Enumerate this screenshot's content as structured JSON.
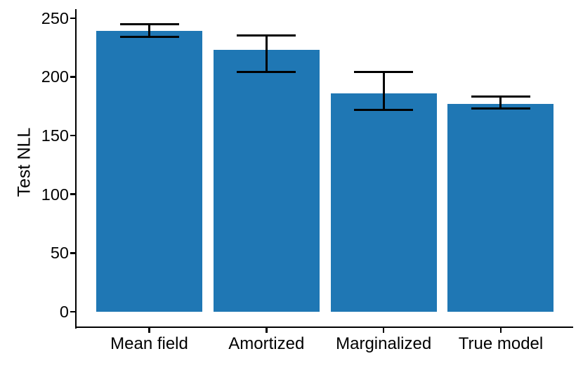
{
  "chart_data": {
    "type": "bar",
    "title": "",
    "xlabel": "",
    "ylabel": "Test NLL",
    "categories": [
      "Mean field",
      "Amortized",
      "Marginalized",
      "True model"
    ],
    "values": [
      239,
      223,
      186,
      177
    ],
    "error_low": [
      234,
      204,
      172,
      173
    ],
    "error_high": [
      245,
      235,
      204,
      183
    ],
    "y_ticks": [
      0,
      50,
      100,
      150,
      200,
      250
    ],
    "ylim": [
      0,
      257
    ],
    "grid": false,
    "legend": "none",
    "bar_color": "#1f77b4",
    "error_bar_color": "#000000",
    "axis_color": "#000000",
    "background_color": "#ffffff"
  }
}
